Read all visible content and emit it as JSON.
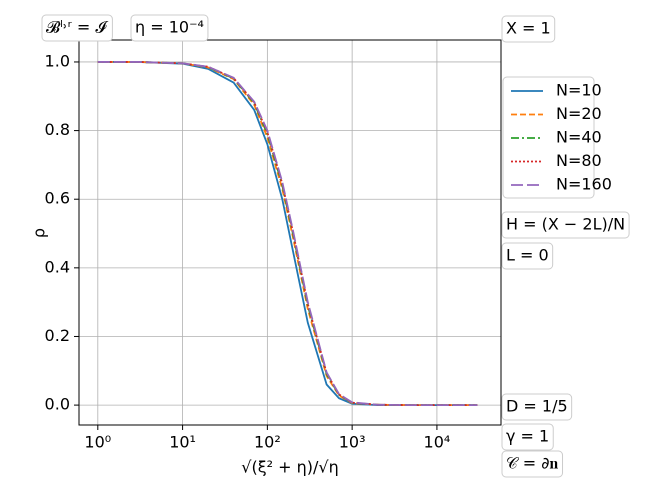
{
  "chart_data": {
    "type": "line",
    "x_label": "√(ξ² + η)/√η",
    "y_label": "ρ",
    "x": [
      1,
      3,
      10,
      20,
      40,
      70,
      100,
      150,
      200,
      300,
      500,
      700,
      1000,
      2000,
      5000,
      30000
    ],
    "series": [
      {
        "name": "N=10",
        "color": "#1f77b4",
        "linestyle": "solid",
        "values": [
          1.0,
          1.0,
          0.995,
          0.98,
          0.94,
          0.86,
          0.76,
          0.6,
          0.45,
          0.24,
          0.06,
          0.02,
          0.004,
          0,
          0,
          0
        ]
      },
      {
        "name": "N=20",
        "color": "#ff7f0e",
        "linestyle": "dashed",
        "values": [
          1.0,
          1.0,
          0.996,
          0.984,
          0.95,
          0.875,
          0.78,
          0.63,
          0.49,
          0.28,
          0.085,
          0.028,
          0.006,
          0.001,
          0,
          0
        ]
      },
      {
        "name": "N=40",
        "color": "#2ca02c",
        "linestyle": "dashdot",
        "values": [
          1.0,
          1.0,
          0.996,
          0.985,
          0.952,
          0.88,
          0.79,
          0.64,
          0.5,
          0.29,
          0.09,
          0.03,
          0.007,
          0.001,
          0,
          0
        ]
      },
      {
        "name": "N=80",
        "color": "#d62728",
        "linestyle": "dotted",
        "values": [
          1.0,
          1.0,
          0.996,
          0.986,
          0.953,
          0.882,
          0.795,
          0.645,
          0.505,
          0.295,
          0.093,
          0.031,
          0.007,
          0.001,
          0,
          0
        ]
      },
      {
        "name": "N=160",
        "color": "#9467bd",
        "linestyle": "longdash",
        "values": [
          1.0,
          1.0,
          0.996,
          0.986,
          0.954,
          0.884,
          0.8,
          0.65,
          0.51,
          0.3,
          0.095,
          0.032,
          0.008,
          0.001,
          0,
          0
        ]
      }
    ],
    "xlim": [
      0.6,
      57000
    ],
    "log_x": true,
    "xticks": [
      {
        "value": 1,
        "label": "10⁰"
      },
      {
        "value": 10,
        "label": "10¹"
      },
      {
        "value": 100,
        "label": "10²"
      },
      {
        "value": 1000,
        "label": "10³"
      },
      {
        "value": 10000,
        "label": "10⁴"
      }
    ],
    "ylim": [
      -0.058,
      1.064
    ],
    "yticks": [
      {
        "value": 0,
        "label": "0.0"
      },
      0.2,
      0.4,
      0.6,
      0.8,
      {
        "value": 1,
        "label": "1.0"
      }
    ],
    "grid": true,
    "annotations": [
      "𝓑ˡ˒ʳ = 𝓘",
      "η = 10⁻⁴",
      "X = 1",
      "H = (X − 2L)/N",
      "L = 0",
      "D = 1/5",
      "γ = 1",
      "𝒞 = ∂𝐧"
    ]
  }
}
